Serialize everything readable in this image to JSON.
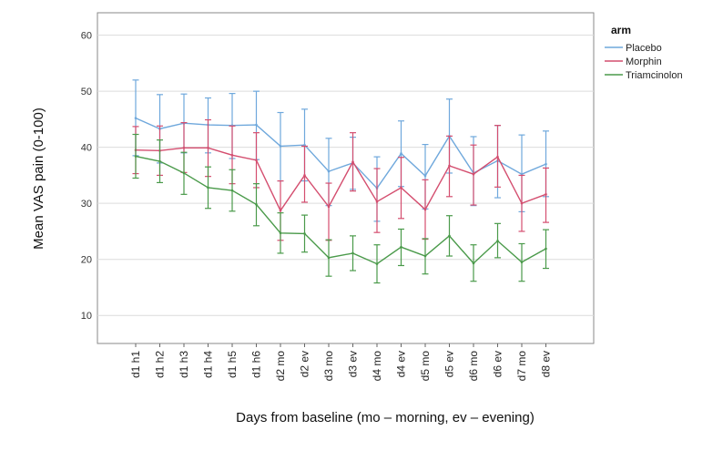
{
  "chart_data": {
    "type": "line",
    "xlabel": "Days from baseline (mo – morning, ev – evening)",
    "ylabel": "Mean VAS pain (0-100)",
    "ylim": [
      5,
      64
    ],
    "yticks": [
      10,
      20,
      30,
      40,
      50,
      60
    ],
    "grid": "horizontal",
    "legend_title": "arm",
    "legend_position": "top-right",
    "categories": [
      "d1 h1",
      "d1 h2",
      "d1 h3",
      "d1 h4",
      "d1 h5",
      "d1 h6",
      "d2 mo",
      "d2 ev",
      "d3 mo",
      "d3 ev",
      "d4 mo",
      "d4 ev",
      "d5 mo",
      "d5 ev",
      "d6 mo",
      "d6 ev",
      "d7 mo",
      "d8 ev"
    ],
    "series": [
      {
        "name": "Placebo",
        "color": "#6fa8dc",
        "values": [
          45.2,
          43.3,
          44.3,
          44.0,
          43.9,
          44.0,
          40.2,
          40.4,
          35.7,
          37.2,
          32.7,
          38.9,
          34.9,
          42.0,
          35.4,
          37.6,
          35.2,
          37.0
        ],
        "lower": [
          38.5,
          37.2,
          39.0,
          39.0,
          38.0,
          37.8,
          34.0,
          34.0,
          29.6,
          32.5,
          26.8,
          33.0,
          29.0,
          35.4,
          29.6,
          31.0,
          28.5,
          31.2
        ],
        "upper": [
          52.0,
          49.4,
          49.5,
          48.8,
          49.6,
          50.0,
          46.2,
          46.8,
          41.6,
          41.8,
          38.3,
          44.7,
          40.5,
          48.6,
          41.9,
          43.9,
          42.2,
          42.9
        ]
      },
      {
        "name": "Morphin",
        "color": "#d44e6f",
        "values": [
          39.5,
          39.4,
          39.9,
          39.9,
          38.6,
          37.7,
          28.7,
          35.0,
          29.4,
          37.4,
          30.3,
          32.8,
          28.9,
          36.7,
          35.2,
          38.3,
          30.0,
          31.6
        ],
        "lower": [
          35.3,
          35.0,
          35.5,
          34.8,
          33.5,
          32.8,
          23.4,
          30.2,
          23.4,
          32.2,
          24.8,
          27.3,
          23.6,
          31.2,
          29.7,
          32.9,
          25.0,
          26.6
        ],
        "upper": [
          43.7,
          43.8,
          44.4,
          44.9,
          43.8,
          42.6,
          34.0,
          40.2,
          33.6,
          42.6,
          36.2,
          38.2,
          34.2,
          42.0,
          40.4,
          43.9,
          35.0,
          36.3
        ]
      },
      {
        "name": "Triamcinolon",
        "color": "#4a9a4a",
        "values": [
          38.4,
          37.5,
          35.4,
          32.8,
          32.3,
          29.8,
          24.7,
          24.6,
          20.3,
          21.1,
          19.2,
          22.2,
          20.6,
          24.2,
          19.3,
          23.3,
          19.5,
          21.9
        ],
        "lower": [
          34.5,
          33.7,
          31.6,
          29.1,
          28.6,
          26.0,
          21.1,
          21.3,
          17.0,
          18.0,
          15.8,
          18.9,
          17.4,
          20.6,
          16.1,
          20.3,
          16.1,
          18.4
        ],
        "upper": [
          42.3,
          41.3,
          39.1,
          36.5,
          36.0,
          33.5,
          28.3,
          27.9,
          23.5,
          24.2,
          22.6,
          25.4,
          23.7,
          27.8,
          22.6,
          26.4,
          22.8,
          25.3
        ]
      }
    ]
  }
}
